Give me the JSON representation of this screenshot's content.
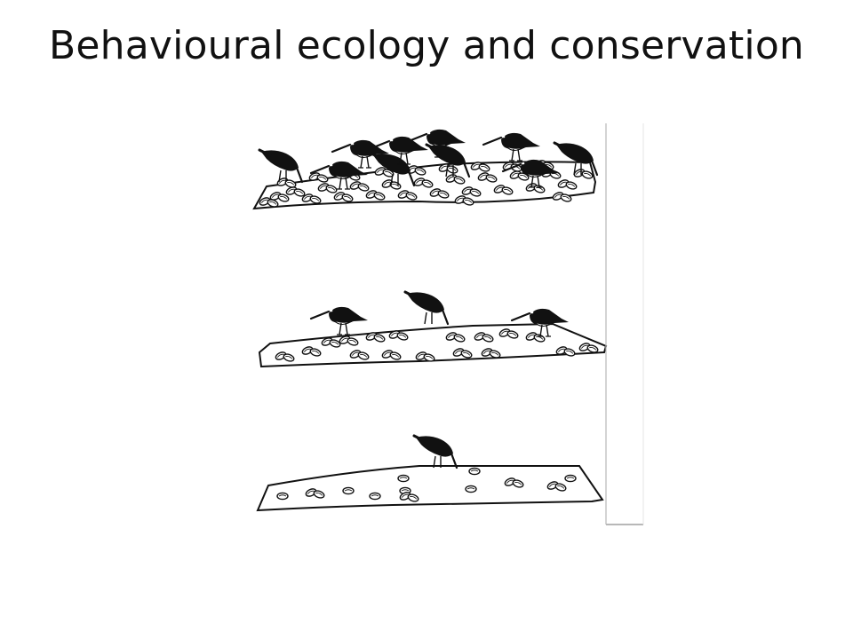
{
  "slide": {
    "title": "Behavioural ecology and conservation"
  },
  "illustration": {
    "subject": "oystercatchers feeding on mussel beds",
    "panels": [
      {
        "id": "high-density",
        "bird_count": 10,
        "mussel_density": "high"
      },
      {
        "id": "medium-density",
        "bird_count": 3,
        "mussel_density": "medium"
      },
      {
        "id": "low-density",
        "bird_count": 1,
        "mussel_density": "low"
      }
    ]
  },
  "colors": {
    "background": "#ffffff",
    "ink": "#111111",
    "frame_edge": "#b8b8b8"
  }
}
